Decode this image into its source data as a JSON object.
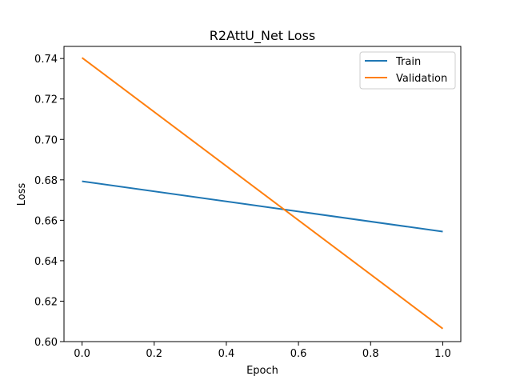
{
  "chart_data": {
    "type": "line",
    "title": "R2AttU_Net Loss",
    "xlabel": "Epoch",
    "ylabel": "Loss",
    "x": [
      0.0,
      1.0
    ],
    "xlim": [
      -0.05,
      1.05
    ],
    "ylim": [
      0.6,
      0.746
    ],
    "xticks": [
      0.0,
      0.2,
      0.4,
      0.6,
      0.8,
      1.0
    ],
    "xtick_labels": [
      "0.0",
      "0.2",
      "0.4",
      "0.6",
      "0.8",
      "1.0"
    ],
    "yticks": [
      0.6,
      0.62,
      0.64,
      0.66,
      0.68,
      0.7,
      0.72,
      0.74
    ],
    "ytick_labels": [
      "0.60",
      "0.62",
      "0.64",
      "0.66",
      "0.68",
      "0.70",
      "0.72",
      "0.74"
    ],
    "grid": false,
    "legend_position": "top-right",
    "series": [
      {
        "name": "Train",
        "values": [
          0.6793,
          0.6544
        ],
        "color": "#1f77b4"
      },
      {
        "name": "Validation",
        "values": [
          0.7404,
          0.6064
        ],
        "color": "#ff7f0e"
      }
    ]
  }
}
